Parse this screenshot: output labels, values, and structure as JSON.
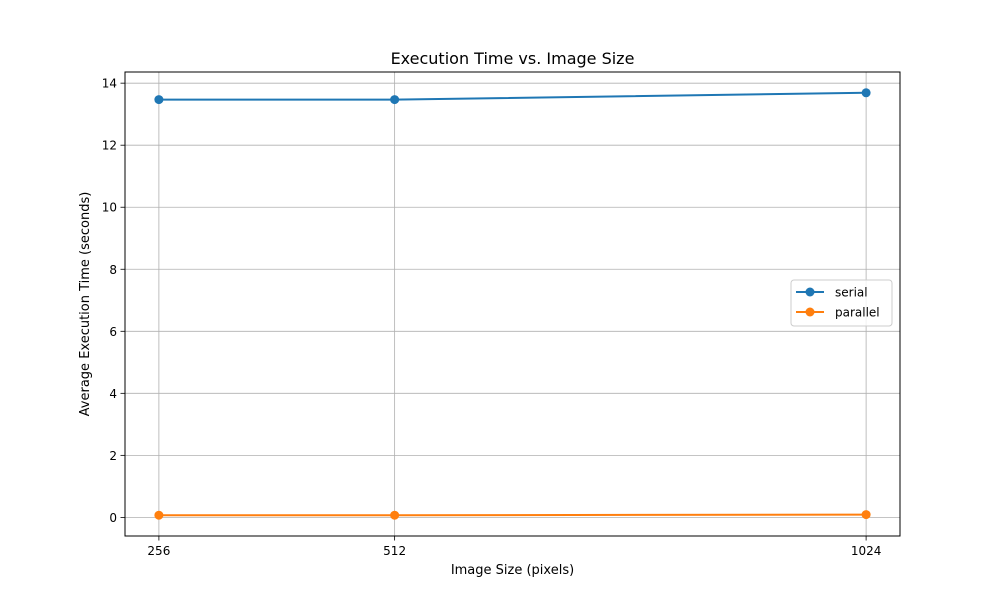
{
  "chart_data": {
    "type": "line",
    "title": "Execution Time vs. Image Size",
    "xlabel": "Image Size (pixels)",
    "ylabel": "Average Execution Time (seconds)",
    "x": [
      256,
      512,
      1024
    ],
    "x_tick_labels": [
      "256",
      "512",
      "1024"
    ],
    "y_ticks": [
      0,
      2,
      4,
      6,
      8,
      10,
      12,
      14
    ],
    "y_tick_labels": [
      "0",
      "2",
      "4",
      "6",
      "8",
      "10",
      "12",
      "14"
    ],
    "xlim": [
      219.2,
      1060.8
    ],
    "ylim": [
      -0.6,
      14.36
    ],
    "grid": true,
    "legend_position": "center-right",
    "series": [
      {
        "name": "serial",
        "color": "#1f77b4",
        "marker": "circle",
        "values": [
          13.47,
          13.47,
          13.69
        ]
      },
      {
        "name": "parallel",
        "color": "#ff7f0e",
        "marker": "circle",
        "values": [
          0.07,
          0.07,
          0.09
        ]
      }
    ]
  }
}
